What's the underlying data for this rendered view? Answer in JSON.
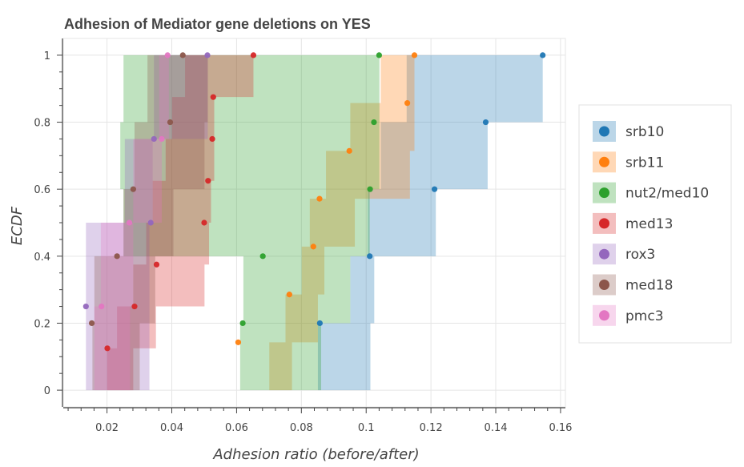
{
  "chart_data": {
    "type": "ecdf",
    "title": "Adhesion of Mediator gene deletions on YES",
    "xlabel": "Adhesion ratio (before/after)",
    "ylabel": "ECDF",
    "xlim": [
      0.0065,
      0.1615
    ],
    "ylim": [
      -0.05,
      1.05
    ],
    "x_ticks": [
      0.02,
      0.04,
      0.06,
      0.08,
      0.1,
      0.12,
      0.14,
      0.16
    ],
    "x_tick_labels": [
      "0.02",
      "0.04",
      "0.06",
      "0.08",
      "0.1",
      "0.12",
      "0.14",
      "0.16"
    ],
    "y_ticks": [
      0,
      0.2,
      0.4,
      0.6,
      0.8,
      1
    ],
    "y_tick_labels": [
      "0",
      "0.2",
      "0.4",
      "0.6",
      "0.8",
      "1"
    ],
    "grid": true,
    "legend_position": "right",
    "series": [
      {
        "name": "srb10",
        "color": "#1f77b4",
        "x": [
          0.0857,
          0.1011,
          0.1211,
          0.1369,
          0.1545
        ],
        "band_lo": [
          0.0832,
          0.0851,
          0.0951,
          0.1005,
          0.1045,
          0.1125
        ],
        "band_hi": [
          0.1013,
          0.1025,
          0.1215,
          0.1375,
          0.1545,
          0.1545
        ]
      },
      {
        "name": "srb11",
        "color": "#ff7f0e",
        "x": [
          0.0605,
          0.0763,
          0.0837,
          0.0856,
          0.0948,
          0.1127,
          0.1149
        ],
        "band_lo": [
          0.0581,
          0.0701,
          0.0751,
          0.0801,
          0.0826,
          0.0876,
          0.0951,
          0.1045
        ],
        "band_hi": [
          0.0771,
          0.0851,
          0.0871,
          0.0965,
          0.1135,
          0.1149,
          0.1149,
          0.1149
        ]
      },
      {
        "name": "nut2/med10",
        "color": "#2ca02c",
        "x": [
          0.0619,
          0.0681,
          0.1012,
          0.1024,
          0.104
        ],
        "band_lo": [
          0.0601,
          0.0611,
          0.0621,
          0.0251,
          0.0241,
          0.0251
        ],
        "band_hi": [
          0.0861,
          0.0951,
          0.1011,
          0.1041,
          0.1041,
          0.1041
        ]
      },
      {
        "name": "med13",
        "color": "#d62728",
        "x": [
          0.0201,
          0.0285,
          0.0353,
          0.05,
          0.0512,
          0.0525,
          0.0528,
          0.0652
        ],
        "band_lo": [
          0.0191,
          0.0201,
          0.0231,
          0.0281,
          0.0321,
          0.0341,
          0.0381,
          0.0401,
          0.0441
        ],
        "band_hi": [
          0.0281,
          0.0351,
          0.0501,
          0.0515,
          0.0521,
          0.0531,
          0.0531,
          0.0652,
          0.0652
        ]
      },
      {
        "name": "rox3",
        "color": "#9467bd",
        "x": [
          0.0135,
          0.0335,
          0.0345,
          0.051
        ],
        "band_lo": [
          0.0135,
          0.0135,
          0.0135,
          0.0255,
          0.0345
        ],
        "band_hi": [
          0.0331,
          0.0331,
          0.0341,
          0.0511,
          0.0511
        ]
      },
      {
        "name": "med18",
        "color": "#8c564b",
        "x": [
          0.0153,
          0.0231,
          0.0281,
          0.0395,
          0.0434
        ],
        "band_lo": [
          0.0151,
          0.0155,
          0.0161,
          0.0251,
          0.0285,
          0.0325
        ],
        "band_hi": [
          0.0301,
          0.0349,
          0.0405,
          0.0501,
          0.0511,
          0.0511
        ]
      },
      {
        "name": "pmc3",
        "color": "#e377c2",
        "x": [
          0.0183,
          0.0269,
          0.0369,
          0.0387
        ],
        "band_lo": [
          0.0151,
          0.0161,
          0.0181,
          0.0281,
          0.0361
        ],
        "band_hi": [
          0.0271,
          0.0281,
          0.0369,
          0.0391,
          0.0391
        ]
      }
    ]
  }
}
